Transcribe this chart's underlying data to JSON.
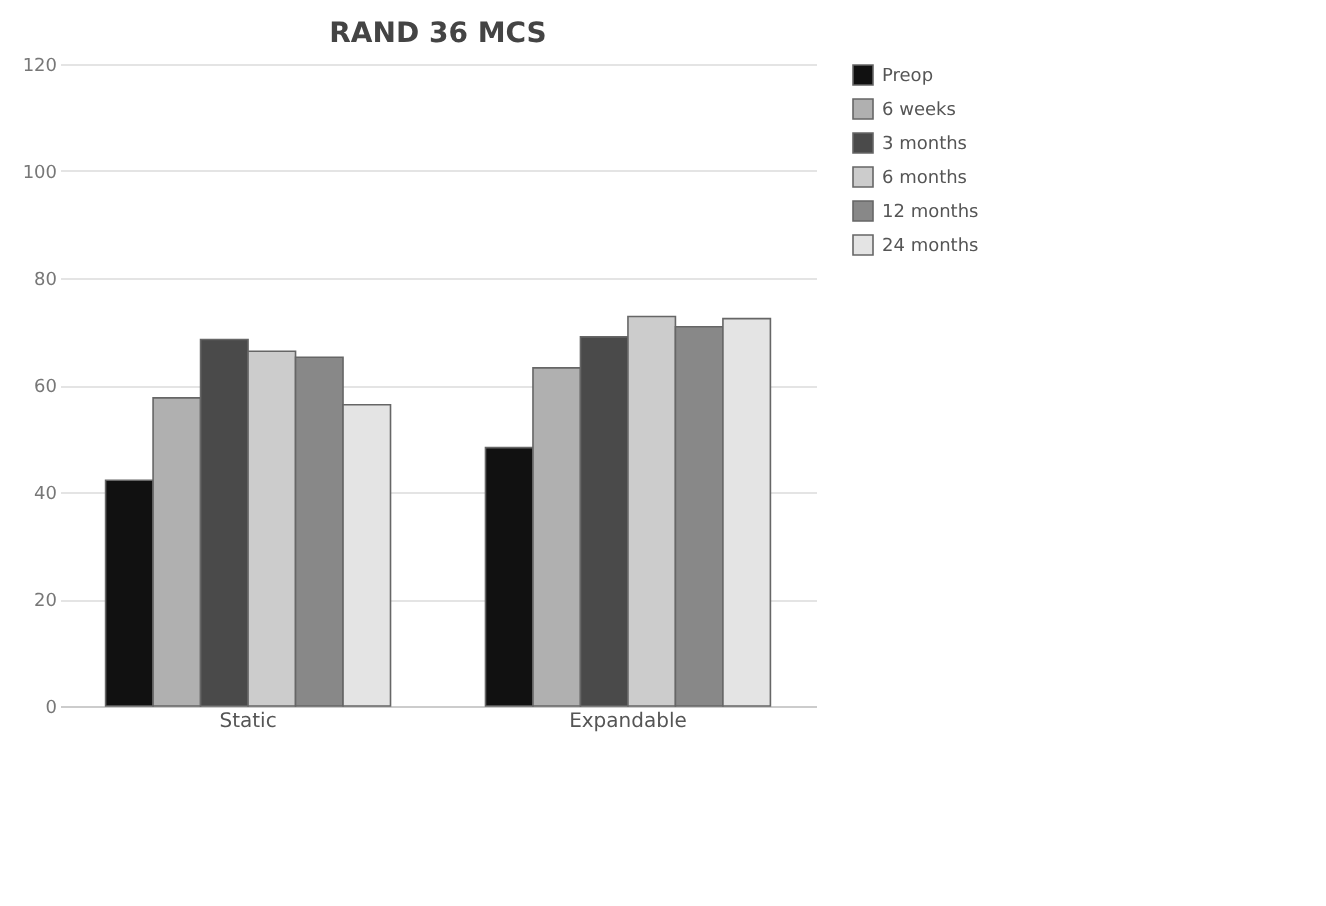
{
  "chart_data": {
    "type": "bar",
    "title": "RAND 36 MCS",
    "categories": [
      "Static",
      "Expandable"
    ],
    "series": [
      {
        "name": "Preop",
        "color": "#111111",
        "values": [
          42.2,
          48.3
        ]
      },
      {
        "name": "6 weeks",
        "color": "#b0b0b0",
        "values": [
          57.6,
          63.2
        ]
      },
      {
        "name": "3 months",
        "color": "#4a4a4a",
        "values": [
          68.5,
          69.0
        ]
      },
      {
        "name": "6 months",
        "color": "#cccccc",
        "values": [
          66.3,
          72.8
        ]
      },
      {
        "name": "12 months",
        "color": "#888888",
        "values": [
          65.2,
          70.9
        ]
      },
      {
        "name": "24 months",
        "color": "#e4e4e4",
        "values": [
          56.3,
          72.4
        ]
      }
    ],
    "ylim": [
      0,
      120
    ],
    "yticks": [
      0,
      20,
      40,
      60,
      80,
      100,
      120
    ],
    "grid": "y",
    "legend": "right"
  }
}
